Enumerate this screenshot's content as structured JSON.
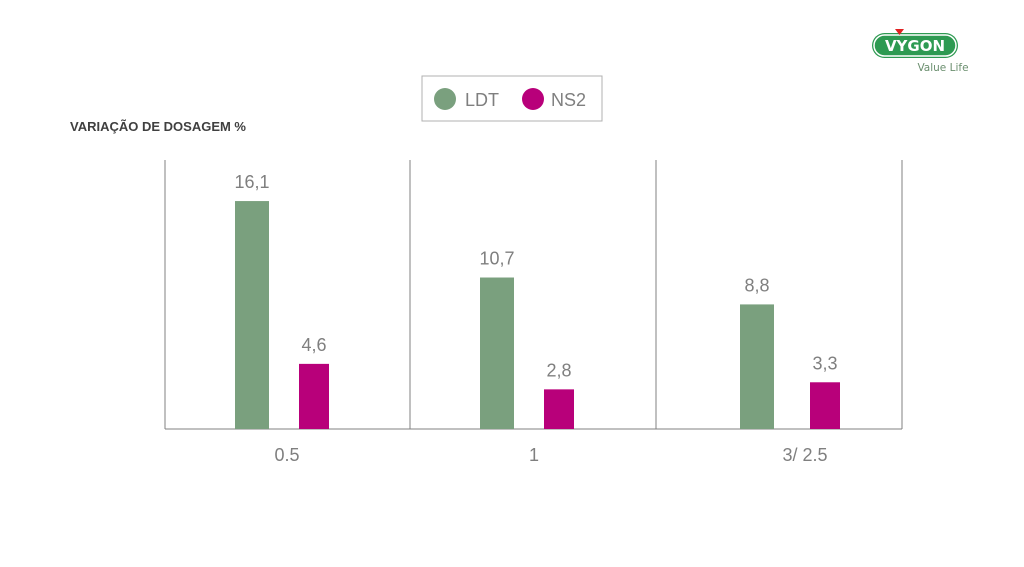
{
  "brand": {
    "logo_text": "VYGON",
    "tagline": "Value Life",
    "color": "#2e9a52"
  },
  "chart_data": {
    "type": "bar",
    "title": "VARIAÇÃO DE DOSAGEM %",
    "categories": [
      "0.5",
      "1",
      "3/ 2.5"
    ],
    "series": [
      {
        "name": "LDT",
        "values": [
          16.1,
          10.7,
          8.8
        ],
        "labels": [
          "16,1",
          "10,7",
          "8,8"
        ],
        "color": "#7aa07e"
      },
      {
        "name": "NS2",
        "values": [
          4.6,
          2.8,
          3.3
        ],
        "labels": [
          "4,6",
          "2,8",
          "3,3"
        ],
        "color": "#b8007a"
      }
    ],
    "ylim": [
      0,
      19
    ],
    "legend_position": "top-center",
    "grid": "vertical separators"
  }
}
